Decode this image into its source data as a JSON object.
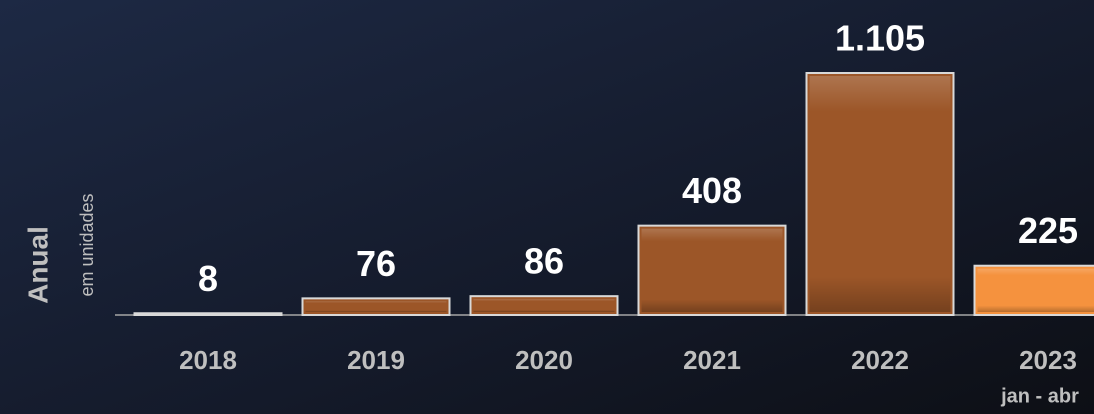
{
  "chart_data": {
    "type": "bar",
    "axis_title": "Anual",
    "axis_subtitle": "em unidades",
    "categories": [
      "2018",
      "2019",
      "2020",
      "2021",
      "2022",
      "2023"
    ],
    "values": [
      8,
      76,
      86,
      408,
      1105,
      225
    ],
    "value_labels": [
      "8",
      "76",
      "86",
      "408",
      "1.105",
      "225"
    ],
    "colors": [
      "#9c5628",
      "#9c5628",
      "#9c5628",
      "#9c5628",
      "#9c5628",
      "#f5923e"
    ],
    "annotations": [
      {
        "category": "2023",
        "text": "jan - abr"
      }
    ],
    "grid": false
  }
}
